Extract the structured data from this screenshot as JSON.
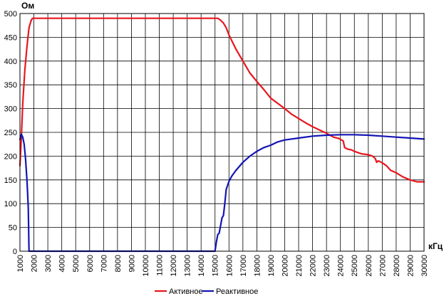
{
  "chart_data": {
    "type": "line",
    "title": "",
    "ylabel": "Ом",
    "xlabel": "кГц",
    "xlim": [
      1000,
      30000
    ],
    "ylim": [
      0,
      500
    ],
    "x_ticks": [
      1000,
      2000,
      3000,
      4000,
      5000,
      6000,
      7000,
      8000,
      9000,
      10000,
      11000,
      12000,
      13000,
      14000,
      15000,
      16000,
      17000,
      18000,
      19000,
      20000,
      21000,
      22000,
      23000,
      24000,
      25000,
      26000,
      27000,
      28000,
      29000,
      30000
    ],
    "y_ticks": [
      0,
      50,
      100,
      150,
      200,
      250,
      300,
      350,
      400,
      450,
      500
    ],
    "grid": true,
    "legend_position": "bottom",
    "series": [
      {
        "name": "Активное",
        "color": "#e8161f",
        "x": [
          1000,
          1100,
          1200,
          1350,
          1500,
          1650,
          1800,
          1900,
          2000,
          3000,
          5000,
          8000,
          11000,
          14000,
          15000,
          15200,
          15400,
          15600,
          15800,
          16000,
          16200,
          16500,
          17000,
          17500,
          18000,
          18500,
          19000,
          19500,
          20000,
          20500,
          21000,
          21500,
          22000,
          22500,
          23000,
          23500,
          23900,
          24000,
          24200,
          24300,
          24500,
          24800,
          25000,
          25500,
          26000,
          26300,
          26500,
          26600,
          26700,
          26800,
          27000,
          27300,
          27600,
          28000,
          28500,
          29000,
          29500,
          30000
        ],
        "y": [
          180,
          240,
          310,
          380,
          430,
          470,
          485,
          490,
          490,
          490,
          490,
          490,
          490,
          490,
          490,
          490,
          486,
          480,
          470,
          455,
          443,
          425,
          400,
          375,
          357,
          340,
          322,
          311,
          300,
          288,
          279,
          270,
          262,
          255,
          248,
          240,
          237,
          235,
          232,
          218,
          215,
          213,
          210,
          205,
          203,
          200,
          195,
          187,
          190,
          189,
          186,
          180,
          170,
          165,
          156,
          150,
          146,
          146
        ]
      },
      {
        "name": "Реактивное",
        "color": "#1414b4",
        "x": [
          1000,
          1100,
          1200,
          1300,
          1400,
          1500,
          1550,
          1600,
          1650,
          1700,
          1800,
          2000,
          5000,
          10000,
          14000,
          15000,
          15100,
          15200,
          15300,
          15500,
          15600,
          15700,
          15800,
          16000,
          16200,
          16500,
          17000,
          17500,
          18000,
          18500,
          19000,
          19500,
          20000,
          21000,
          22000,
          23000,
          24000,
          25000,
          26000,
          27000,
          28000,
          29000,
          30000
        ],
        "y": [
          235,
          246,
          240,
          225,
          195,
          150,
          120,
          90,
          0,
          0,
          0,
          0,
          0,
          0,
          0,
          0,
          20,
          35,
          38,
          70,
          75,
          100,
          130,
          147,
          158,
          170,
          187,
          200,
          210,
          218,
          223,
          230,
          234,
          238,
          242,
          244,
          245,
          245,
          244,
          242,
          240,
          238,
          236
        ]
      }
    ]
  }
}
